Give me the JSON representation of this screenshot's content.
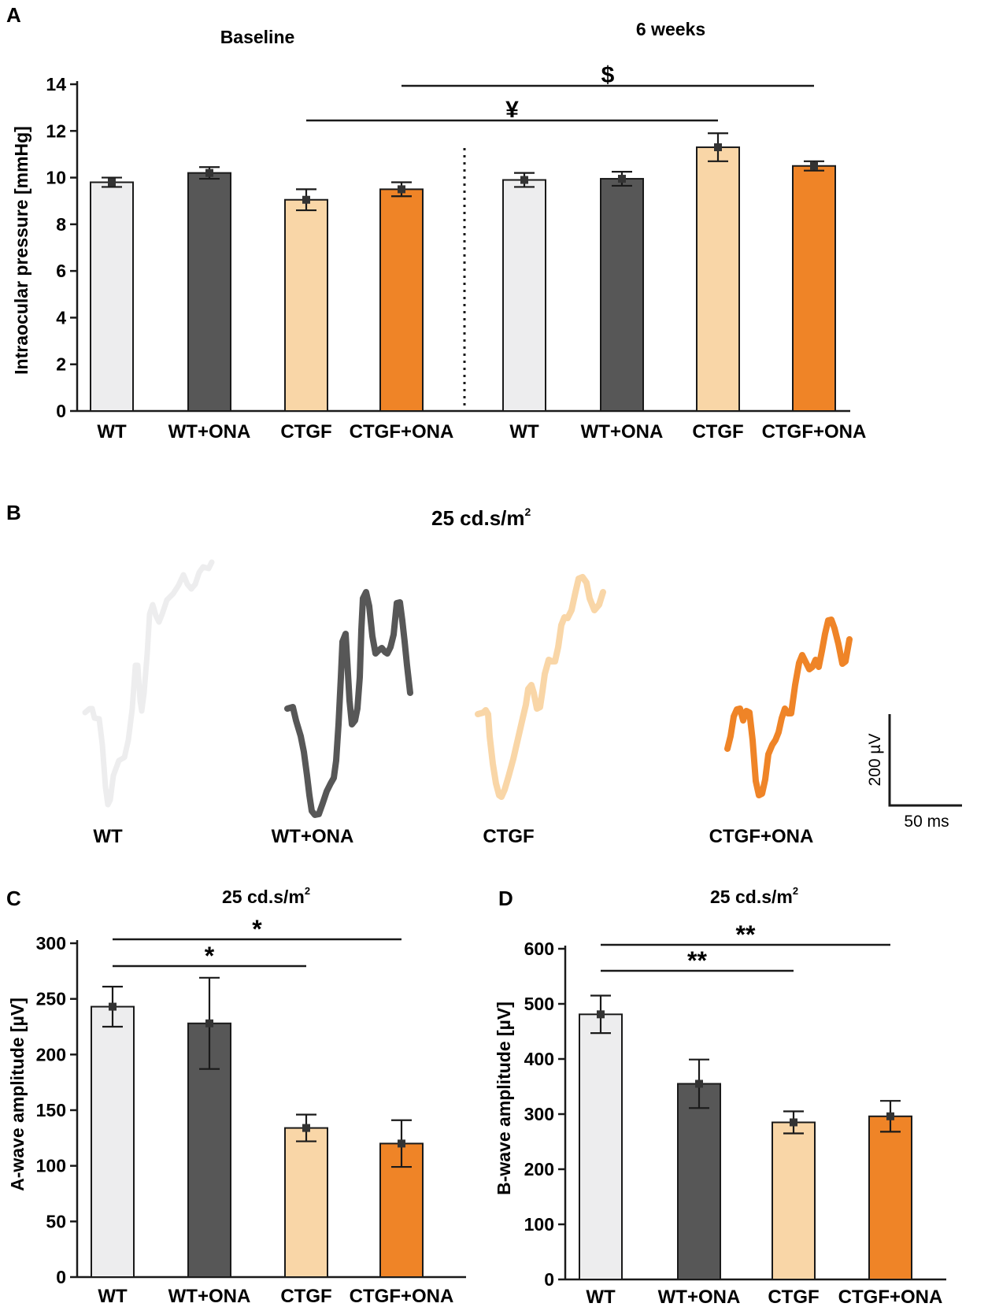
{
  "colors": {
    "WT": "#ededee",
    "WT+ONA": "#575757",
    "CTGF": "#f9d6a7",
    "CTGF+ONA": "#ef8427",
    "axis": "#1a1a1a"
  },
  "chart_data": [
    {
      "panel": "A",
      "type": "bar",
      "title": "",
      "group_titles": [
        "Baseline",
        "6 weeks"
      ],
      "ylabel": "Intraocular pressure [mmHg]",
      "xlabel": "",
      "ylim": [
        0,
        14
      ],
      "yticks": [
        0,
        2,
        4,
        6,
        8,
        10,
        12,
        14
      ],
      "yticklabels": [
        "0",
        "2",
        "4",
        "6",
        "8",
        "10",
        "12",
        "14"
      ],
      "categories": [
        "WT",
        "WT+ONA",
        "CTGF",
        "CTGF+ONA",
        "WT",
        "WT+ONA",
        "CTGF",
        "CTGF+ONA"
      ],
      "color_keys": [
        "WT",
        "WT+ONA",
        "CTGF",
        "CTGF+ONA",
        "WT",
        "WT+ONA",
        "CTGF",
        "CTGF+ONA"
      ],
      "values": [
        9.8,
        10.2,
        9.05,
        9.5,
        9.9,
        9.95,
        11.3,
        10.5
      ],
      "errors": [
        0.2,
        0.25,
        0.45,
        0.3,
        0.3,
        0.3,
        0.6,
        0.2
      ],
      "annotations": [
        {
          "label": "¥",
          "from": 2,
          "to": 6
        },
        {
          "label": "$",
          "from": 3,
          "to": 7
        }
      ]
    },
    {
      "panel": "C",
      "type": "bar",
      "title": "25 cd.s/m",
      "title_sup": "2",
      "ylabel": "A-wave amplitude [µV]",
      "xlabel": "",
      "ylim": [
        0,
        300
      ],
      "yticks": [
        0,
        50,
        100,
        150,
        200,
        250,
        300
      ],
      "yticklabels": [
        "0",
        "50",
        "100",
        "150",
        "200",
        "250",
        "300"
      ],
      "categories": [
        "WT",
        "WT+ONA",
        "CTGF",
        "CTGF+ONA"
      ],
      "color_keys": [
        "WT",
        "WT+ONA",
        "CTGF",
        "CTGF+ONA"
      ],
      "values": [
        243,
        228,
        134,
        120
      ],
      "errors": [
        18,
        41,
        12,
        21
      ],
      "annotations": [
        {
          "label": "*",
          "from": 0,
          "to": 3
        },
        {
          "label": "*",
          "from": 0,
          "to": 2
        }
      ]
    },
    {
      "panel": "D",
      "type": "bar",
      "title": "25 cd.s/m",
      "title_sup": "2",
      "ylabel": "B-wave amplitude [µV]",
      "xlabel": "",
      "ylim": [
        0,
        600
      ],
      "yticks": [
        0,
        100,
        200,
        300,
        400,
        500,
        600
      ],
      "yticklabels": [
        "0",
        "100",
        "200",
        "300",
        "400",
        "500",
        "600"
      ],
      "categories": [
        "WT",
        "WT+ONA",
        "CTGF",
        "CTGF+ONA"
      ],
      "color_keys": [
        "WT",
        "WT+ONA",
        "CTGF",
        "CTGF+ONA"
      ],
      "values": [
        481,
        355,
        285,
        296
      ],
      "errors": [
        34,
        44,
        20,
        28
      ],
      "annotations": [
        {
          "label": "**",
          "from": 0,
          "to": 3
        },
        {
          "label": "**",
          "from": 0,
          "to": 2
        }
      ]
    }
  ],
  "erg": {
    "panel": "B",
    "title": "25 cd.s/m",
    "title_sup": "2",
    "traces": [
      {
        "label": "WT",
        "color_key": "WT"
      },
      {
        "label": "WT+ONA",
        "color_key": "WT+ONA"
      },
      {
        "label": "CTGF",
        "color_key": "CTGF"
      },
      {
        "label": "CTGF+ONA",
        "color_key": "CTGF+ONA"
      }
    ],
    "scale_bar": {
      "voltage_label": "200 µV",
      "time_label": "50 ms"
    }
  },
  "panel_letters": [
    "A",
    "B",
    "C",
    "D"
  ]
}
